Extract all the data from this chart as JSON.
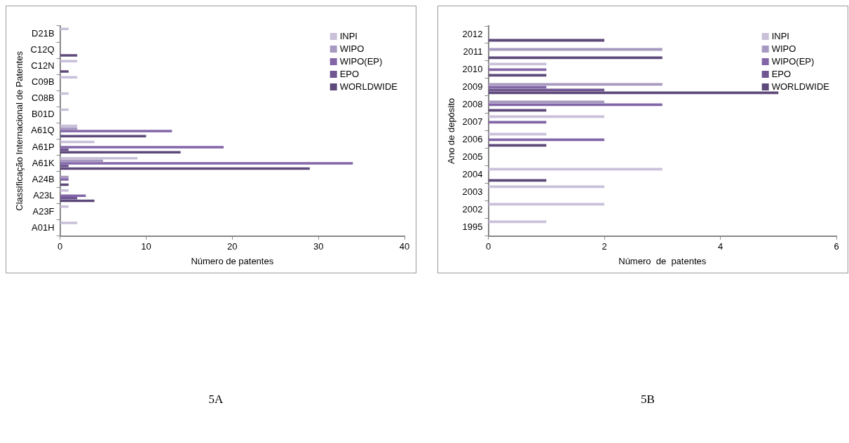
{
  "chart_data": [
    {
      "type": "bar",
      "orientation": "horizontal",
      "ylabel": "Classificação Internacional de Patentes",
      "xlabel": "Número de patentes",
      "annotations": [
        "5A"
      ],
      "categories": [
        "D21B",
        "C12Q",
        "C12N",
        "C09B",
        "C08B",
        "B01D",
        "A61Q",
        "A61P",
        "A61K",
        "A24B",
        "A23L",
        "A23F",
        "A01H"
      ],
      "series": [
        {
          "name": "INPI",
          "color": "#c9c0d9",
          "values": [
            1,
            null,
            2,
            2,
            1,
            1,
            2,
            4,
            9,
            null,
            1,
            1,
            2
          ]
        },
        {
          "name": "WIPO",
          "color": "#a899c0",
          "values": [
            null,
            null,
            null,
            null,
            null,
            null,
            2,
            null,
            5,
            1,
            null,
            null,
            null
          ]
        },
        {
          "name": "WIPO(EP)",
          "color": "#8266a8",
          "values": [
            null,
            null,
            null,
            null,
            null,
            null,
            13,
            19,
            34,
            1,
            3,
            null,
            null
          ]
        },
        {
          "name": "EPO",
          "color": "#6f5690",
          "values": [
            null,
            null,
            null,
            null,
            null,
            null,
            null,
            1,
            1,
            null,
            2,
            null,
            null
          ]
        },
        {
          "name": "WORLDWIDE",
          "color": "#5e4a7a",
          "values": [
            null,
            2,
            1,
            null,
            null,
            null,
            10,
            14,
            29,
            1,
            4,
            null,
            null
          ]
        }
      ],
      "xlim": [
        0,
        40
      ],
      "xticks": [
        0,
        10,
        20,
        30,
        40
      ],
      "grid": false,
      "legend": "top right"
    },
    {
      "type": "bar",
      "orientation": "horizontal",
      "ylabel": "Ano de depósito",
      "xlabel": "Número  de  patentes",
      "annotations": [
        "5B"
      ],
      "categories": [
        "2012",
        "2011",
        "2010",
        "2009",
        "2008",
        "2007",
        "2006",
        "2005",
        "2004",
        "2003",
        "2002",
        "1995"
      ],
      "series": [
        {
          "name": "INPI",
          "color": "#c9c0d9",
          "values": [
            null,
            null,
            1,
            null,
            null,
            2,
            1,
            null,
            3,
            2,
            2,
            1
          ]
        },
        {
          "name": "WIPO",
          "color": "#a899c0",
          "values": [
            null,
            3,
            null,
            3,
            2,
            null,
            null,
            null,
            null,
            null,
            null,
            null
          ]
        },
        {
          "name": "WIPO(EP)",
          "color": "#8266a8",
          "values": [
            null,
            null,
            1,
            1,
            3,
            1,
            2,
            null,
            null,
            null,
            null,
            null
          ]
        },
        {
          "name": "EPO",
          "color": "#6f5690",
          "values": [
            null,
            null,
            null,
            2,
            null,
            null,
            null,
            null,
            null,
            null,
            null,
            null
          ]
        },
        {
          "name": "WORLDWIDE",
          "color": "#5e4a7a",
          "values": [
            2,
            3,
            1,
            5,
            1,
            null,
            1,
            null,
            1,
            null,
            null,
            null
          ]
        }
      ],
      "xlim": [
        0,
        6
      ],
      "xticks": [
        0,
        2,
        4,
        6
      ],
      "grid": false,
      "legend": "top right"
    }
  ]
}
